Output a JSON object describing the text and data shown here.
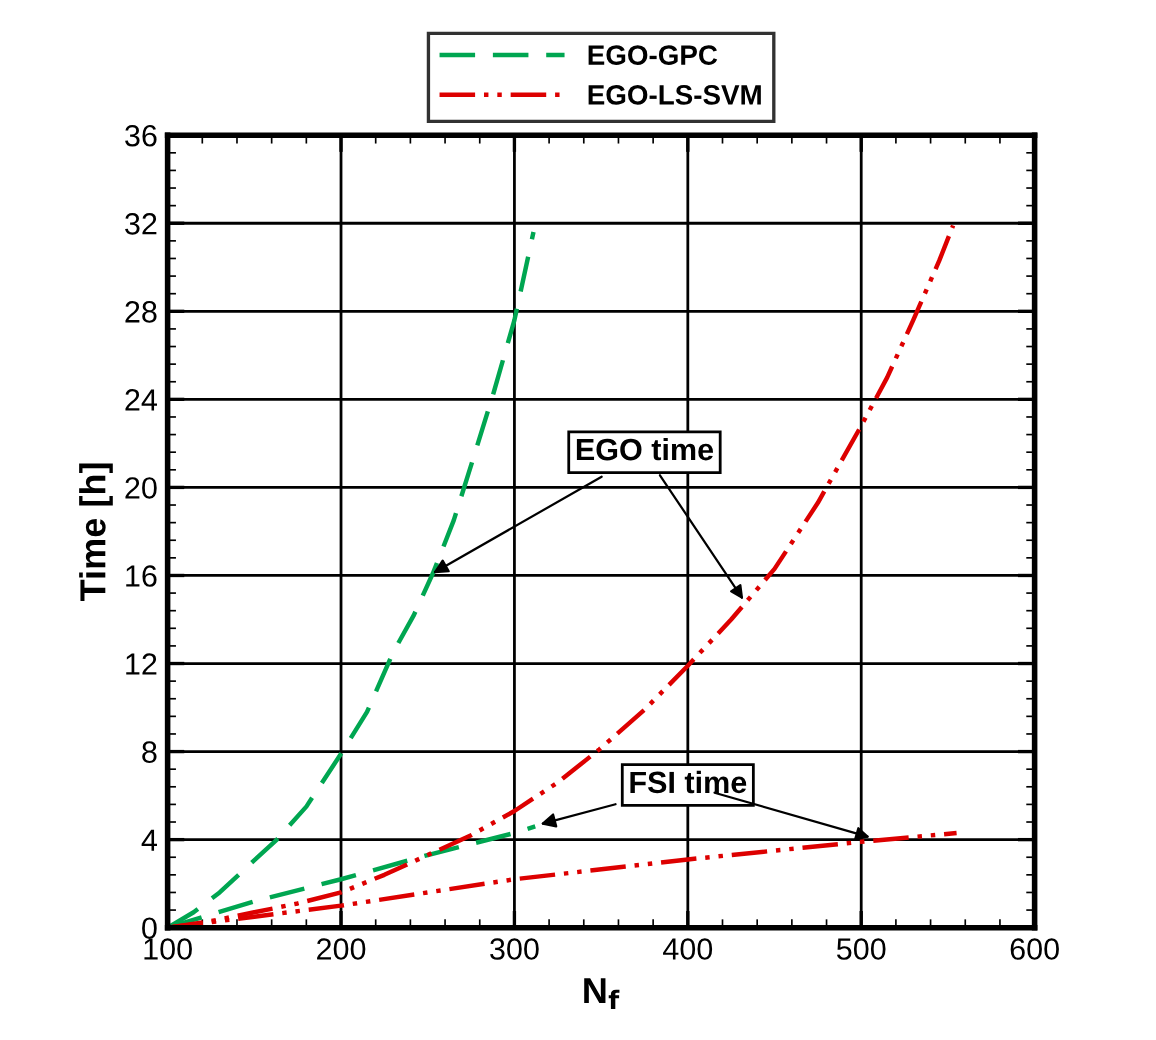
{
  "chart_data": {
    "type": "line",
    "xlabel": "N$_{f}$",
    "ylabel": "Time [h]",
    "xlim": [
      100,
      600
    ],
    "xticks": [
      100,
      200,
      300,
      400,
      500,
      600
    ],
    "ylim": [
      0,
      36
    ],
    "yticks": [
      0,
      4,
      8,
      12,
      16,
      20,
      24,
      28,
      32,
      36
    ],
    "grid": true,
    "legend": "top",
    "series": [
      {
        "name": "EGO-GPC",
        "color": "#00a651",
        "line_style": "dashed",
        "x": [
          100,
          115,
          130,
          145,
          163,
          180,
          200,
          215,
          230,
          242,
          253,
          265,
          275,
          288,
          300,
          311
        ],
        "values": [
          0,
          0.7,
          1.6,
          2.7,
          4.0,
          5.5,
          7.9,
          9.8,
          12.5,
          14.2,
          16.1,
          18.5,
          21.0,
          24.3,
          27.6,
          31.6
        ]
      },
      {
        "color": "#00a651",
        "line_style": "dashed",
        "x": [
          100,
          150,
          200,
          250,
          300,
          312
        ],
        "values": [
          0,
          1.2,
          2.2,
          3.3,
          4.3,
          4.6
        ]
      },
      {
        "name": "EGO-LS-SVM",
        "color": "#dd0000",
        "line_style": "dashdot",
        "x": [
          100,
          125,
          150,
          175,
          200,
          225,
          250,
          275,
          300,
          325,
          349,
          375,
          400,
          425,
          450,
          475,
          500,
          515,
          530,
          545,
          553
        ],
        "values": [
          0,
          0.3,
          0.7,
          1.1,
          1.6,
          2.4,
          3.3,
          4.2,
          5.3,
          6.6,
          8.1,
          9.9,
          11.9,
          14.0,
          16.3,
          19.3,
          22.8,
          25.0,
          27.6,
          30.3,
          31.9
        ]
      },
      {
        "color": "#dd0000",
        "line_style": "dashdot",
        "x": [
          100,
          150,
          200,
          300,
          400,
          500,
          555
        ],
        "values": [
          0,
          0.5,
          1.0,
          2.2,
          3.1,
          3.9,
          4.3
        ]
      }
    ],
    "annotations": [
      {
        "text": "EGO time",
        "x": 253,
        "y": 16.1
      },
      {
        "text": "FSI time",
        "x": 315,
        "y": 4.7
      }
    ]
  }
}
